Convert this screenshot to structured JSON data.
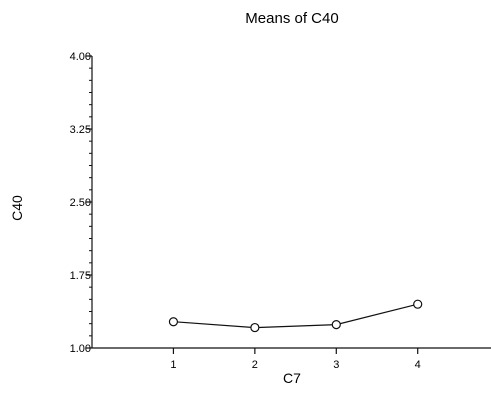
{
  "chart_data": {
    "type": "line",
    "title": "Means of C40",
    "xlabel": "C7",
    "ylabel": "C40",
    "x": [
      1,
      2,
      3,
      4
    ],
    "x_tick_labels": [
      "1",
      "2",
      "3",
      "4"
    ],
    "xlim": [
      0,
      4.9
    ],
    "y_ticks": [
      1.0,
      1.75,
      2.5,
      3.25,
      4.0
    ],
    "y_tick_labels": [
      "1.00",
      "1.75",
      "2.50",
      "3.25",
      "4.00"
    ],
    "ylim": [
      1.0,
      4.0
    ],
    "y_minor_tick_step": 0.125,
    "series": [
      {
        "values": [
          1.27,
          1.21,
          1.24,
          1.45
        ],
        "marker": "open-circle"
      }
    ],
    "grid": false,
    "legend": "none"
  }
}
